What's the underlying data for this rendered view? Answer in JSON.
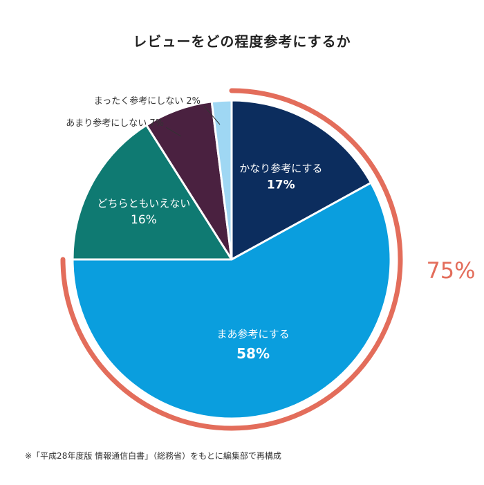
{
  "chart_data": {
    "type": "pie",
    "title": "レビューをどの程度参考にするか",
    "slices": [
      {
        "label": "かなり参考にする",
        "value": 17,
        "value_label": "17%",
        "color": "#0c2d5e",
        "label_color": "#ffffff",
        "label_pos": "inside"
      },
      {
        "label": "まあ参考にする",
        "value": 58,
        "value_label": "58%",
        "color": "#0a9ede",
        "label_color": "#ffffff",
        "label_pos": "inside"
      },
      {
        "label": "どちらともいえない",
        "value": 16,
        "value_label": "16%",
        "color": "#0f7a72",
        "label_color": "#ffffff",
        "label_pos": "inside"
      },
      {
        "label": "あまり参考にしない",
        "value": 7,
        "value_label": "7%",
        "color": "#4a2140",
        "label_color": "#333333",
        "label_pos": "outside"
      },
      {
        "label": "まったく参考にしない",
        "value": 2,
        "value_label": "2%",
        "color": "#9fd7f3",
        "label_color": "#333333",
        "label_pos": "outside"
      }
    ],
    "highlight": {
      "label": "75%",
      "covers": [
        "かなり参考にする",
        "まあ参考にする"
      ],
      "color": "#e36d5b"
    },
    "footnote": "※「平成28年度版 情報通信白書」（総務省）をもとに編集部で再構成"
  }
}
